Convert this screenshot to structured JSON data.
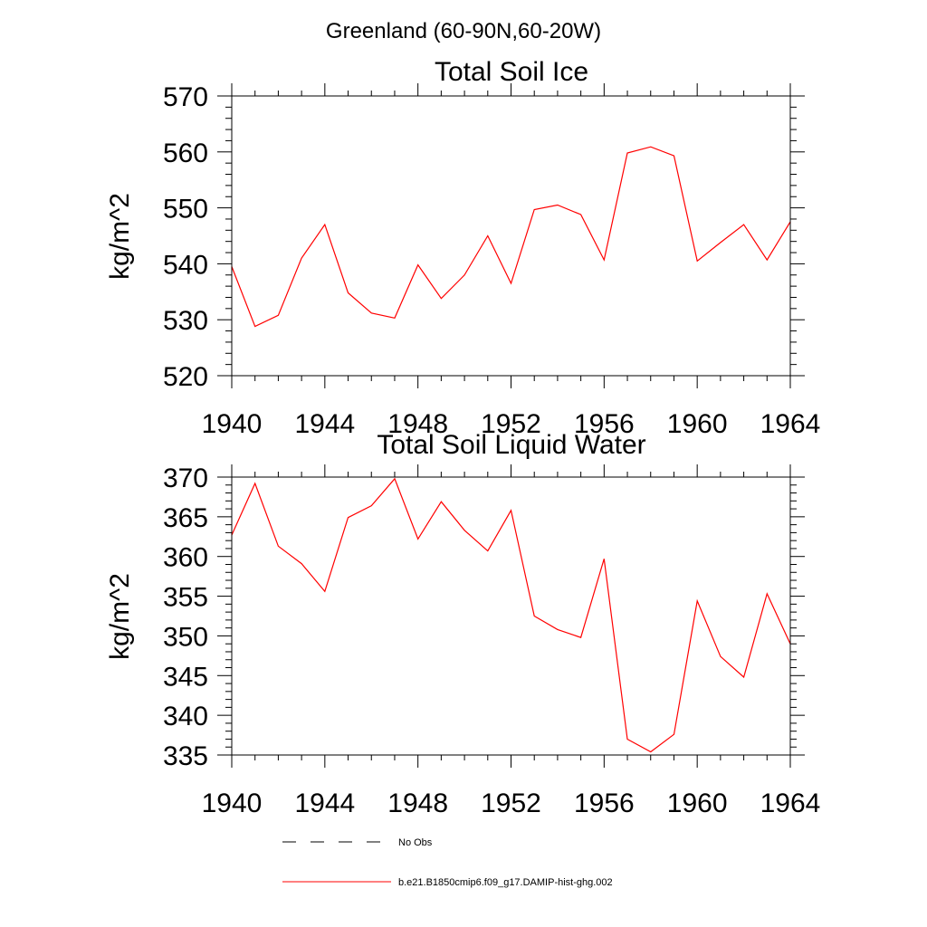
{
  "suptitle": "Greenland (60-90N,60-20W)",
  "colors": {
    "series": "#ff0000",
    "obs": "#000000",
    "axis": "#000000"
  },
  "chart_data": [
    {
      "type": "line",
      "title": "Total Soil Ice",
      "ylabel": "kg/m^2",
      "xlabel": "",
      "xlim": [
        1940,
        1964
      ],
      "ylim": [
        520,
        570
      ],
      "xticks": [
        1940,
        1944,
        1948,
        1952,
        1956,
        1960,
        1964
      ],
      "yticks": [
        520,
        530,
        540,
        550,
        560,
        570
      ],
      "yminor": 2,
      "grid": false,
      "series": [
        {
          "name": "b.e21.B1850cmip6.f09_g17.DAMIP-hist-ghg.002",
          "x": [
            1940,
            1941,
            1942,
            1943,
            1944,
            1945,
            1946,
            1947,
            1948,
            1949,
            1950,
            1951,
            1952,
            1953,
            1954,
            1955,
            1956,
            1957,
            1958,
            1959,
            1960,
            1961,
            1962,
            1963,
            1964
          ],
          "values": [
            539.5,
            528.8,
            530.8,
            541.0,
            547.0,
            534.8,
            531.2,
            530.3,
            539.8,
            533.8,
            538.0,
            545.0,
            536.5,
            549.7,
            550.5,
            548.8,
            540.7,
            559.8,
            560.9,
            559.3,
            540.5,
            543.8,
            547.0,
            540.7,
            547.5
          ]
        }
      ]
    },
    {
      "type": "line",
      "title": "Total Soil Liquid Water",
      "ylabel": "kg/m^2",
      "xlabel": "",
      "xlim": [
        1940,
        1964
      ],
      "ylim": [
        335,
        370
      ],
      "xticks": [
        1940,
        1944,
        1948,
        1952,
        1956,
        1960,
        1964
      ],
      "yticks": [
        335,
        340,
        345,
        350,
        355,
        360,
        365,
        370
      ],
      "yminor": 1,
      "grid": false,
      "series": [
        {
          "name": "b.e21.B1850cmip6.f09_g17.DAMIP-hist-ghg.002",
          "x": [
            1940,
            1941,
            1942,
            1943,
            1944,
            1945,
            1946,
            1947,
            1948,
            1949,
            1950,
            1951,
            1952,
            1953,
            1954,
            1955,
            1956,
            1957,
            1958,
            1959,
            1960,
            1961,
            1962,
            1963,
            1964
          ],
          "values": [
            362.7,
            369.2,
            361.3,
            359.1,
            355.6,
            364.9,
            366.4,
            369.8,
            362.2,
            366.9,
            363.3,
            360.7,
            365.8,
            352.5,
            350.8,
            349.8,
            359.7,
            337.0,
            335.4,
            337.6,
            354.4,
            347.4,
            344.8,
            355.3,
            349.0
          ]
        }
      ]
    }
  ],
  "legend": {
    "placement": "bottom",
    "items": [
      {
        "label": "No Obs",
        "style": "dashed",
        "color": "#000000"
      },
      {
        "label": "b.e21.B1850cmip6.f09_g17.DAMIP-hist-ghg.002",
        "style": "solid",
        "color": "#ff0000"
      }
    ]
  }
}
